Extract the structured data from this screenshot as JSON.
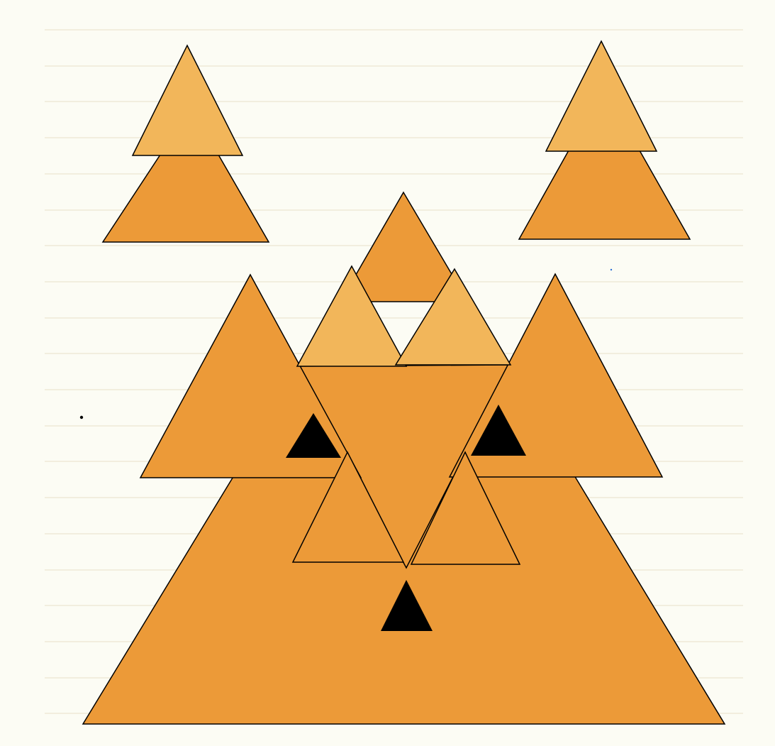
{
  "page": {
    "background_color": "#fcfcf4",
    "line_color": "#e8e0c8",
    "stroke_color": "#000000",
    "fill_dark_orange": "#ec9a38",
    "fill_light_orange": "#f2b65a",
    "fill_black": "#000000",
    "dot_blue": "#2a6fd6"
  },
  "scene": {
    "description_items": [
      "left-tree",
      "right-tree",
      "fox-head"
    ]
  }
}
